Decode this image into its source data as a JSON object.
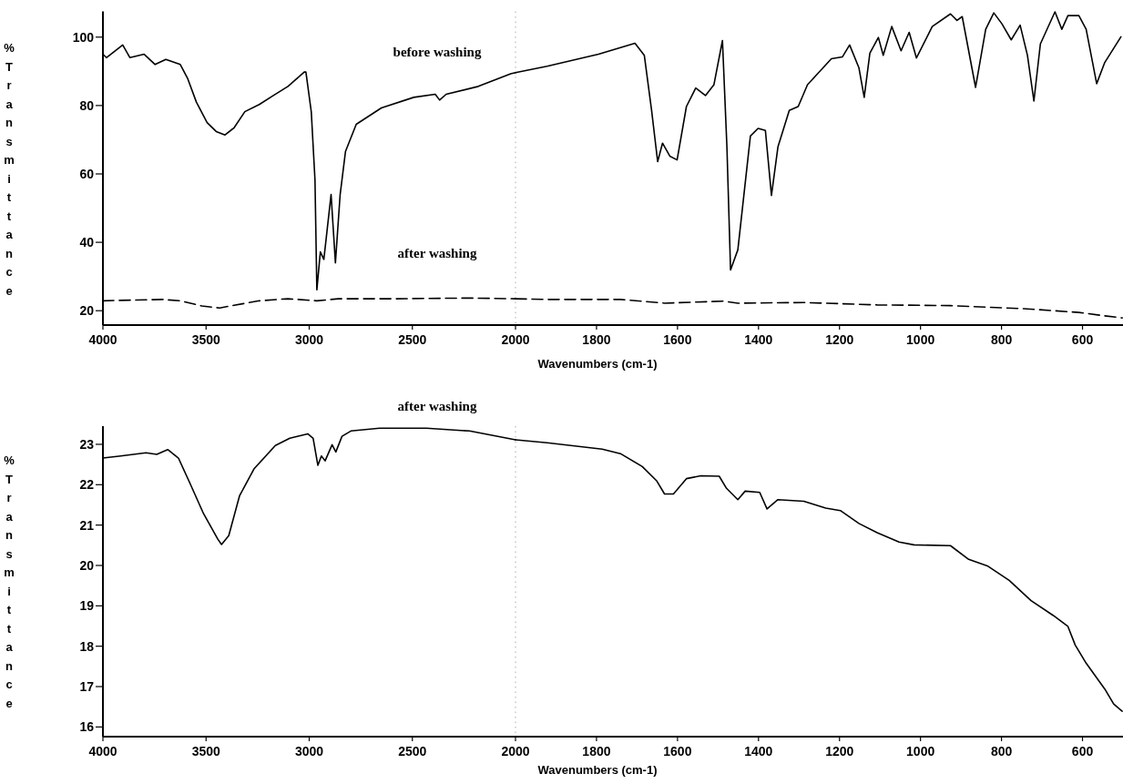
{
  "chart_data": [
    {
      "type": "line",
      "ylabel": "%Transmittance",
      "xlim": [
        4000,
        2000
      ],
      "xticks": [
        4000,
        3500,
        3000,
        2500,
        2000
      ],
      "ylim": [
        15.8,
        107.5
      ],
      "yticks": [
        20,
        40,
        60,
        80,
        100
      ],
      "ref_lines": [
        {
          "axis": "x",
          "value": 2000,
          "color": "#aaaaaa",
          "line_style": "dotted"
        }
      ],
      "series": [
        {
          "name": "before washing",
          "color": "#000000",
          "line_style": "solid",
          "x": [
            4000,
            3983,
            3904,
            3869,
            3800,
            3747,
            3695,
            3625,
            3590,
            3547,
            3495,
            3451,
            3408,
            3364,
            3312,
            3242,
            3172,
            3103,
            3024,
            3016,
            2990,
            2972,
            2963,
            2946,
            2929,
            2894,
            2873,
            2850,
            2824,
            2772,
            2650,
            2493,
            2389,
            2368,
            2336,
            2180,
            2023,
            2000
          ],
          "values": [
            95,
            94,
            97.7,
            94,
            95,
            92,
            93.5,
            92,
            88,
            81,
            75,
            72.4,
            71.4,
            73.5,
            78.2,
            80.3,
            83,
            85.6,
            89.8,
            89.8,
            78.2,
            58.2,
            26.1,
            37.2,
            35,
            54,
            34,
            54,
            66.6,
            74.5,
            79.3,
            82.4,
            83.3,
            81.6,
            83.3,
            85.6,
            89.3,
            89.6
          ]
        },
        {
          "name": "after washing",
          "color": "#000000",
          "line_style": "dashed",
          "x": [
            4000,
            3713,
            3625,
            3521,
            3434,
            3364,
            3242,
            3103,
            2963,
            2859,
            2580,
            2232,
            2000
          ],
          "values": [
            22.9,
            23.3,
            22.9,
            21.4,
            20.8,
            21.6,
            22.9,
            23.5,
            22.9,
            23.5,
            23.5,
            23.7,
            23.5
          ]
        }
      ]
    },
    {
      "type": "line",
      "xlabel": "Wavenumbers (cm-1)",
      "xlim": [
        2000,
        500
      ],
      "xticks": [
        1800,
        1600,
        1400,
        1200,
        1000,
        800,
        600
      ],
      "ylim": [
        15.8,
        107.5
      ],
      "tick_labels": "x",
      "series": [
        {
          "color": "#000000",
          "line_style": "solid",
          "x": [
            2000,
            1922,
            1795,
            1705,
            1682,
            1664,
            1649,
            1637,
            1619,
            1601,
            1578,
            1555,
            1531,
            1510,
            1489,
            1478,
            1469,
            1451,
            1420,
            1401,
            1383,
            1368,
            1352,
            1324,
            1302,
            1279,
            1220,
            1193,
            1175,
            1152,
            1139,
            1125,
            1104,
            1092,
            1071,
            1048,
            1028,
            1010,
            971,
            926,
            910,
            897,
            864,
            839,
            819,
            799,
            776,
            754,
            736,
            720,
            704,
            668,
            651,
            636,
            609,
            591,
            565,
            545,
            505
          ],
          "values": [
            89.6,
            91.5,
            95,
            98.2,
            94.7,
            78.6,
            63.6,
            69,
            65.2,
            64.1,
            79.7,
            85.1,
            82.9,
            86.1,
            99,
            67.9,
            31.9,
            37.8,
            71.1,
            73.3,
            72.7,
            53.7,
            67.9,
            78.6,
            79.7,
            86.1,
            93.7,
            94.2,
            97.7,
            91,
            82.4,
            95.3,
            99.9,
            94.7,
            103.1,
            96,
            101.4,
            93.9,
            103.1,
            106.8,
            104.9,
            106,
            85.3,
            102.3,
            107.1,
            103.9,
            99.2,
            103.5,
            94.7,
            81.3,
            98,
            107.4,
            102.3,
            106.3,
            106.3,
            102.3,
            86.4,
            92.6,
            100.1
          ]
        },
        {
          "color": "#000000",
          "line_style": "dashed",
          "x": [
            2000,
            1922,
            1741,
            1632,
            1487,
            1451,
            1288,
            1107,
            926,
            745,
            609,
            545,
            502
          ],
          "values": [
            23.5,
            23.3,
            23.3,
            22.2,
            22.8,
            22.2,
            22.4,
            21.7,
            21.5,
            20.6,
            19.5,
            18.5,
            17.9
          ]
        }
      ]
    },
    {
      "type": "line",
      "title": "after washing",
      "ylabel": "%Transmittance",
      "xlim": [
        4000,
        2000
      ],
      "xticks": [
        4000,
        3500,
        3000,
        2500,
        2000
      ],
      "ylim": [
        15.76,
        23.45
      ],
      "yticks": [
        16,
        17,
        18,
        19,
        20,
        21,
        22,
        23
      ],
      "ref_lines": [
        {
          "axis": "x",
          "value": 2000,
          "color": "#aaaaaa",
          "line_style": "dotted"
        }
      ],
      "series": [
        {
          "color": "#000000",
          "line_style": "solid",
          "x": [
            4000,
            3913,
            3791,
            3739,
            3686,
            3634,
            3582,
            3512,
            3443,
            3425,
            3390,
            3338,
            3268,
            3164,
            3094,
            3007,
            2981,
            2958,
            2941,
            2923,
            2889,
            2871,
            2841,
            2798,
            2659,
            2432,
            2223,
            2000
          ],
          "values": [
            22.66,
            22.71,
            22.79,
            22.75,
            22.87,
            22.66,
            22.08,
            21.28,
            20.65,
            20.52,
            20.74,
            21.72,
            22.39,
            22.97,
            23.15,
            23.26,
            23.15,
            22.48,
            22.71,
            22.59,
            22.99,
            22.81,
            23.2,
            23.33,
            23.4,
            23.4,
            23.33,
            23.11
          ]
        }
      ]
    },
    {
      "type": "line",
      "xlabel": "Wavenumbers (cm-1)",
      "xlim": [
        2000,
        500
      ],
      "xticks": [
        1800,
        1600,
        1400,
        1200,
        1000,
        800,
        600
      ],
      "ylim": [
        15.76,
        23.45
      ],
      "tick_labels": "x",
      "series": [
        {
          "color": "#000000",
          "line_style": "solid",
          "x": [
            2000,
            1922,
            1786,
            1741,
            1687,
            1651,
            1632,
            1610,
            1578,
            1542,
            1497,
            1479,
            1451,
            1433,
            1397,
            1379,
            1352,
            1288,
            1234,
            1198,
            1152,
            1107,
            1053,
            1016,
            926,
            881,
            835,
            781,
            727,
            672,
            636,
            618,
            591,
            545,
            523,
            502
          ],
          "values": [
            23.11,
            23.04,
            22.88,
            22.77,
            22.45,
            22.09,
            21.77,
            21.77,
            22.15,
            22.22,
            22.21,
            21.91,
            21.63,
            21.84,
            21.81,
            21.4,
            21.63,
            21.59,
            21.42,
            21.36,
            21.04,
            20.81,
            20.58,
            20.51,
            20.49,
            20.15,
            19.99,
            19.63,
            19.13,
            18.76,
            18.49,
            18.03,
            17.58,
            16.94,
            16.57,
            16.39
          ]
        }
      ]
    }
  ]
}
